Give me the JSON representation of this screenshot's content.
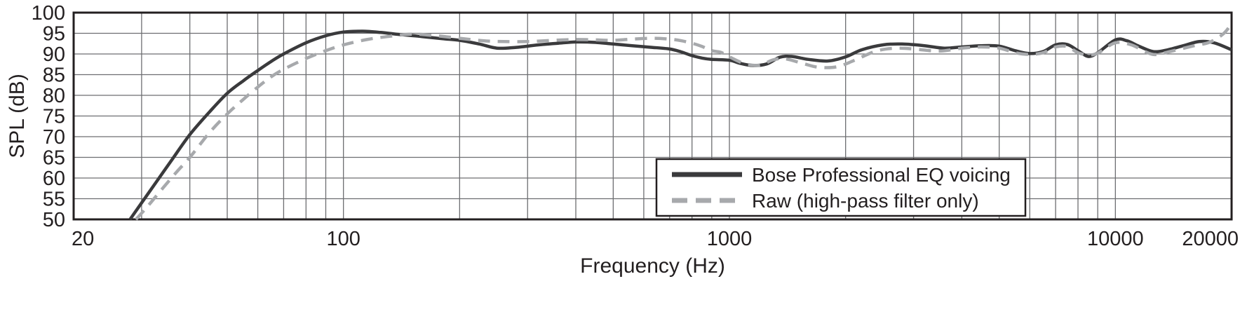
{
  "chart_data": {
    "type": "line",
    "title": "",
    "xlabel": "Frequency (Hz)",
    "ylabel": "SPL (dB)",
    "x_scale": "log",
    "xlim": [
      20,
      20000
    ],
    "ylim": [
      50,
      100
    ],
    "y_ticks": [
      50,
      55,
      60,
      65,
      70,
      75,
      80,
      85,
      90,
      95,
      100
    ],
    "x_tick_labels": [
      {
        "value": 20,
        "label": "20"
      },
      {
        "value": 100,
        "label": "100"
      },
      {
        "value": 1000,
        "label": "1000"
      },
      {
        "value": 10000,
        "label": "10000"
      },
      {
        "value": 20000,
        "label": "20000"
      }
    ],
    "grid": true,
    "legend_position": "lower right",
    "series": [
      {
        "name": "Bose Professional EQ voicing",
        "color": "#3a3a3c",
        "style": "solid",
        "points": [
          [
            28,
            50
          ],
          [
            30,
            54
          ],
          [
            33,
            59.5
          ],
          [
            36,
            64.5
          ],
          [
            40,
            70.5
          ],
          [
            45,
            76
          ],
          [
            50,
            80.5
          ],
          [
            55,
            83.5
          ],
          [
            60,
            86
          ],
          [
            65,
            88.2
          ],
          [
            70,
            90
          ],
          [
            80,
            92.7
          ],
          [
            90,
            94.4
          ],
          [
            100,
            95.3
          ],
          [
            112,
            95.5
          ],
          [
            125,
            95.2
          ],
          [
            140,
            94.7
          ],
          [
            160,
            94.2
          ],
          [
            180,
            93.7
          ],
          [
            200,
            93.3
          ],
          [
            225,
            92.4
          ],
          [
            250,
            91.4
          ],
          [
            280,
            91.6
          ],
          [
            320,
            92.2
          ],
          [
            360,
            92.6
          ],
          [
            400,
            92.9
          ],
          [
            450,
            92.8
          ],
          [
            500,
            92.4
          ],
          [
            560,
            92
          ],
          [
            630,
            91.6
          ],
          [
            700,
            91.2
          ],
          [
            750,
            90.5
          ],
          [
            800,
            89.6
          ],
          [
            850,
            89
          ],
          [
            900,
            88.7
          ],
          [
            1000,
            88.5
          ],
          [
            1060,
            87.8
          ],
          [
            1150,
            87.2
          ],
          [
            1250,
            87.6
          ],
          [
            1350,
            89.2
          ],
          [
            1450,
            89.4
          ],
          [
            1600,
            88.7
          ],
          [
            1800,
            88.3
          ],
          [
            2000,
            89.3
          ],
          [
            2200,
            91
          ],
          [
            2500,
            92.2
          ],
          [
            2800,
            92.4
          ],
          [
            3200,
            92
          ],
          [
            3600,
            91.4
          ],
          [
            4000,
            91.7
          ],
          [
            4500,
            92
          ],
          [
            5000,
            91.9
          ],
          [
            5500,
            90.8
          ],
          [
            6000,
            90.1
          ],
          [
            6500,
            90.6
          ],
          [
            7000,
            92.2
          ],
          [
            7500,
            92.3
          ],
          [
            8000,
            90.8
          ],
          [
            8500,
            89.4
          ],
          [
            9000,
            90.3
          ],
          [
            10000,
            93.4
          ],
          [
            10700,
            93.2
          ],
          [
            11500,
            91.9
          ],
          [
            12500,
            90.6
          ],
          [
            13500,
            90.9
          ],
          [
            15000,
            92
          ],
          [
            16500,
            93
          ],
          [
            18000,
            92.7
          ],
          [
            20000,
            91
          ]
        ]
      },
      {
        "name": "Raw (high-pass filter only)",
        "color": "#a7a9ac",
        "style": "dashed",
        "points": [
          [
            29,
            50
          ],
          [
            31,
            53
          ],
          [
            34,
            57.5
          ],
          [
            37,
            61.5
          ],
          [
            40,
            65
          ],
          [
            45,
            71
          ],
          [
            50,
            75.5
          ],
          [
            55,
            79
          ],
          [
            60,
            82
          ],
          [
            65,
            84.5
          ],
          [
            70,
            86.3
          ],
          [
            80,
            88.9
          ],
          [
            90,
            90.8
          ],
          [
            100,
            92.2
          ],
          [
            115,
            93.5
          ],
          [
            130,
            94.2
          ],
          [
            150,
            94.8
          ],
          [
            170,
            94.5
          ],
          [
            200,
            93.8
          ],
          [
            230,
            93.2
          ],
          [
            260,
            93
          ],
          [
            300,
            93
          ],
          [
            350,
            93.3
          ],
          [
            400,
            93.5
          ],
          [
            450,
            93.4
          ],
          [
            500,
            93.3
          ],
          [
            560,
            93.6
          ],
          [
            630,
            93.8
          ],
          [
            700,
            93.6
          ],
          [
            750,
            93.2
          ],
          [
            800,
            92.6
          ],
          [
            850,
            91.8
          ],
          [
            900,
            90.8
          ],
          [
            950,
            90.4
          ],
          [
            1000,
            89.3
          ],
          [
            1100,
            87.6
          ],
          [
            1200,
            87.3
          ],
          [
            1300,
            88.6
          ],
          [
            1400,
            88.8
          ],
          [
            1550,
            87.7
          ],
          [
            1700,
            86.8
          ],
          [
            1900,
            86.9
          ],
          [
            2100,
            88.4
          ],
          [
            2400,
            90.7
          ],
          [
            2700,
            91.4
          ],
          [
            3000,
            91.2
          ],
          [
            3500,
            90.7
          ],
          [
            4000,
            91.4
          ],
          [
            4500,
            91.7
          ],
          [
            5000,
            91.4
          ],
          [
            5500,
            90.3
          ],
          [
            6000,
            89.9
          ],
          [
            6500,
            90.3
          ],
          [
            7000,
            91.7
          ],
          [
            7500,
            91.8
          ],
          [
            8000,
            90.3
          ],
          [
            8500,
            89.8
          ],
          [
            9000,
            90.2
          ],
          [
            10000,
            92.7
          ],
          [
            11000,
            92.2
          ],
          [
            12500,
            89.9
          ],
          [
            14000,
            90.7
          ],
          [
            16000,
            92
          ],
          [
            17500,
            92.8
          ],
          [
            19000,
            94.8
          ],
          [
            20000,
            97.3
          ]
        ]
      }
    ]
  },
  "colors": {
    "background": "#ffffff",
    "grid": "#6d6e71",
    "axis": "#231f20",
    "text": "#231f20",
    "legend_border": "#231f20",
    "legend_fill": "#ffffff"
  }
}
